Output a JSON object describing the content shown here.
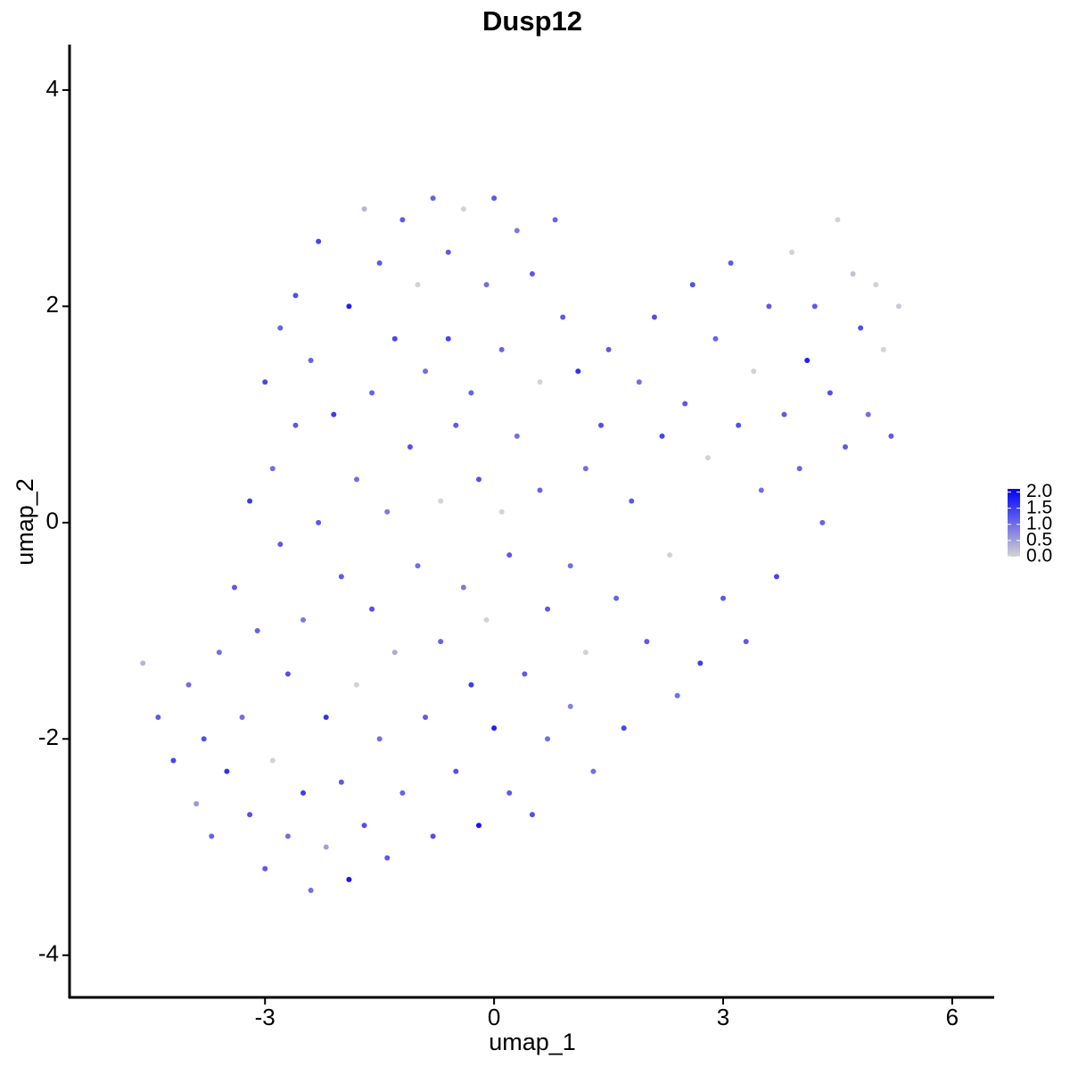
{
  "chart_data": {
    "type": "scatter",
    "title": "Dusp12",
    "x_label": "umap_1",
    "y_label": "umap_2",
    "xlim": [
      -5.56,
      6.55
    ],
    "ylim": [
      -4.39,
      4.42
    ],
    "xticks": [
      -3,
      0,
      3,
      6
    ],
    "yticks": [
      -4,
      -2,
      0,
      2,
      4
    ],
    "color_low": "#d3d3d3",
    "color_high": "#0000ff",
    "color_limits": [
      0,
      2.1
    ],
    "color_ticks": [
      {
        "value": 0,
        "label": "0.0"
      },
      0.5,
      {
        "value": 1,
        "label": "1.0"
      },
      1.5,
      {
        "value": 2,
        "label": "2.0"
      }
    ],
    "x": [
      -4.6,
      -4.4,
      -4.2,
      -4.0,
      -3.9,
      -3.8,
      -3.7,
      -3.6,
      -3.5,
      -3.4,
      -3.3,
      -3.2,
      -3.2,
      -3.1,
      -3.0,
      -3.0,
      -2.9,
      -2.9,
      -2.8,
      -2.8,
      -2.7,
      -2.7,
      -2.6,
      -2.6,
      -2.5,
      -2.5,
      -2.4,
      -2.4,
      -2.3,
      -2.3,
      -2.2,
      -2.2,
      -2.1,
      -2.0,
      -2.0,
      -1.9,
      -1.9,
      -1.8,
      -1.8,
      -1.7,
      -1.7,
      -1.6,
      -1.6,
      -1.5,
      -1.5,
      -1.4,
      -1.4,
      -1.3,
      -1.3,
      -1.2,
      -1.2,
      -1.1,
      -1.0,
      -1.0,
      -0.9,
      -0.9,
      -0.8,
      -0.8,
      -0.7,
      -0.7,
      -0.6,
      -0.6,
      -0.5,
      -0.5,
      -0.4,
      -0.4,
      -0.3,
      -0.3,
      -0.2,
      -0.2,
      -0.1,
      -0.1,
      0.0,
      0.0,
      0.1,
      0.1,
      0.2,
      0.2,
      0.3,
      0.3,
      0.4,
      0.5,
      0.5,
      0.6,
      0.6,
      0.7,
      0.7,
      0.8,
      0.9,
      1.0,
      1.0,
      1.1,
      1.2,
      1.2,
      1.3,
      1.4,
      1.5,
      1.6,
      1.7,
      1.8,
      1.9,
      2.0,
      2.1,
      2.2,
      2.3,
      2.4,
      2.5,
      2.6,
      2.7,
      2.8,
      2.9,
      3.0,
      3.1,
      3.2,
      3.3,
      3.4,
      3.5,
      3.6,
      3.7,
      3.8,
      3.9,
      4.0,
      4.1,
      4.2,
      4.3,
      4.4,
      4.5,
      4.6,
      4.7,
      4.8,
      4.9,
      5.0,
      5.1,
      5.2,
      5.3
    ],
    "y": [
      -1.3,
      -1.8,
      -2.2,
      -1.5,
      -2.6,
      -2.0,
      -2.9,
      -1.2,
      -2.3,
      -0.6,
      -1.8,
      -2.7,
      0.2,
      -1.0,
      -3.2,
      1.3,
      -2.2,
      0.5,
      -0.2,
      1.8,
      -1.4,
      -2.9,
      0.9,
      2.1,
      -0.9,
      -2.5,
      1.5,
      -3.4,
      0.0,
      2.6,
      -1.8,
      -3.0,
      1.0,
      -0.5,
      -2.4,
      2.0,
      -3.3,
      0.4,
      -1.5,
      2.9,
      -2.8,
      1.2,
      -0.8,
      2.4,
      -2.0,
      0.1,
      -3.1,
      1.7,
      -1.2,
      2.8,
      -2.5,
      0.7,
      -0.4,
      2.2,
      -1.8,
      1.4,
      -2.9,
      3.0,
      0.2,
      -1.1,
      2.5,
      1.7,
      -2.3,
      0.9,
      -0.6,
      2.9,
      -1.5,
      1.2,
      -2.8,
      0.4,
      2.2,
      -0.9,
      3.0,
      -1.9,
      1.6,
      0.1,
      -2.5,
      -0.3,
      2.7,
      0.8,
      -1.4,
      2.3,
      -2.7,
      0.3,
      1.3,
      -0.8,
      -2.0,
      2.8,
      1.9,
      -0.4,
      -1.7,
      1.4,
      0.5,
      -1.2,
      -2.3,
      0.9,
      1.6,
      -0.7,
      -1.9,
      0.2,
      1.3,
      -1.1,
      1.9,
      0.8,
      -0.3,
      -1.6,
      1.1,
      2.2,
      -1.3,
      0.6,
      1.7,
      -0.7,
      2.4,
      0.9,
      -1.1,
      1.4,
      0.3,
      2.0,
      -0.5,
      1.0,
      2.5,
      0.5,
      1.5,
      2.0,
      0.0,
      1.2,
      2.8,
      0.7,
      2.3,
      1.8,
      1.0,
      2.2,
      1.6,
      0.8,
      2.0
    ],
    "values": [
      0.3,
      1.2,
      1.4,
      1.0,
      0.6,
      1.3,
      1.1,
      1.0,
      1.6,
      1.2,
      1.0,
      1.3,
      1.5,
      1.1,
      1.2,
      1.4,
      0.0,
      1.0,
      1.2,
      1.1,
      1.3,
      1.0,
      1.2,
      1.3,
      0.9,
      1.5,
      1.1,
      1.0,
      1.2,
      1.4,
      1.6,
      0.5,
      1.5,
      1.2,
      1.2,
      1.8,
      1.9,
      1.0,
      0.0,
      0.3,
      1.3,
      1.1,
      1.3,
      1.2,
      1.0,
      0.9,
      1.2,
      1.4,
      0.4,
      1.2,
      1.1,
      1.3,
      1.0,
      0.0,
      1.2,
      1.0,
      1.3,
      1.1,
      0.0,
      1.1,
      1.2,
      1.4,
      1.3,
      1.2,
      0.9,
      0.0,
      1.5,
      1.1,
      1.9,
      1.3,
      1.0,
      0.0,
      1.2,
      1.8,
      1.1,
      0.0,
      1.2,
      1.2,
      0.9,
      1.0,
      1.2,
      1.2,
      1.3,
      1.1,
      0.0,
      1.2,
      1.0,
      1.1,
      1.2,
      1.0,
      0.8,
      1.6,
      1.0,
      0.0,
      1.0,
      1.3,
      1.2,
      1.1,
      1.4,
      1.2,
      1.0,
      1.2,
      1.3,
      1.4,
      0.0,
      1.0,
      1.2,
      1.3,
      1.5,
      0.0,
      1.1,
      1.2,
      1.2,
      1.3,
      1.2,
      0.0,
      1.0,
      1.2,
      1.4,
      1.2,
      0.0,
      1.1,
      1.8,
      1.2,
      1.1,
      1.3,
      0.0,
      1.2,
      0.2,
      1.3,
      1.0,
      0.0,
      0.0,
      1.2,
      0.1
    ]
  }
}
